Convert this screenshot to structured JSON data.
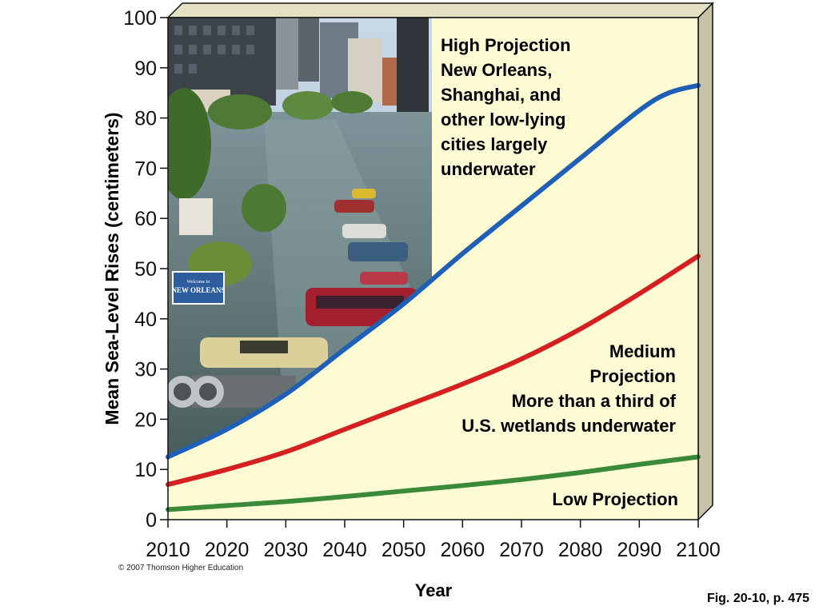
{
  "chart_data": {
    "type": "line",
    "xlabel": "Year",
    "ylabel": "Mean Sea-Level Rises (centimeters)",
    "xlim": [
      2010,
      2100
    ],
    "ylim": [
      0,
      100
    ],
    "x_ticks": [
      2010,
      2020,
      2030,
      2040,
      2050,
      2060,
      2070,
      2080,
      2090,
      2100
    ],
    "y_ticks": [
      0,
      10,
      20,
      30,
      40,
      50,
      60,
      70,
      80,
      90,
      100
    ],
    "grid": false,
    "series": [
      {
        "name": "High Projection",
        "color": "#1f5fb5",
        "x": [
          2010,
          2020,
          2030,
          2040,
          2050,
          2060,
          2070,
          2080,
          2090,
          2095,
          2100
        ],
        "values": [
          12.5,
          18,
          25,
          34,
          43,
          53,
          62.5,
          72,
          81.5,
          85,
          86.5
        ]
      },
      {
        "name": "Medium Projection",
        "color": "#d42020",
        "x": [
          2010,
          2020,
          2030,
          2040,
          2050,
          2060,
          2070,
          2080,
          2090,
          2100
        ],
        "values": [
          7,
          10,
          13.5,
          18,
          22.5,
          27,
          32,
          38,
          45,
          52.5
        ]
      },
      {
        "name": "Low Projection",
        "color": "#3a8a3a",
        "x": [
          2010,
          2020,
          2030,
          2040,
          2050,
          2060,
          2070,
          2080,
          2090,
          2100
        ],
        "values": [
          2,
          2.8,
          3.6,
          4.6,
          5.7,
          6.8,
          8,
          9.4,
          11,
          12.5
        ]
      }
    ],
    "annotations": {
      "high": [
        "High Projection",
        "New Orleans,",
        "Shanghai, and",
        "other low-lying",
        "cities largely",
        "underwater"
      ],
      "medium": [
        "Medium",
        "Projection",
        "More than a third of",
        "U.S. wetlands underwater"
      ],
      "low": [
        "Low Projection"
      ]
    }
  },
  "photo": {
    "description_icon": "flooded-city-photo",
    "sign_lines": [
      "Welcome to",
      "NEW ORLEANS"
    ]
  },
  "colors": {
    "plot_background": "#fdfbd3",
    "side_panel": "#c5c2a8",
    "high": "#1f5fb5",
    "medium": "#d42020",
    "low": "#3a8a3a"
  },
  "footer": {
    "copyright": "© 2007 Thomson Higher Education",
    "figure_ref": "Fig. 20-10, p. 475"
  }
}
